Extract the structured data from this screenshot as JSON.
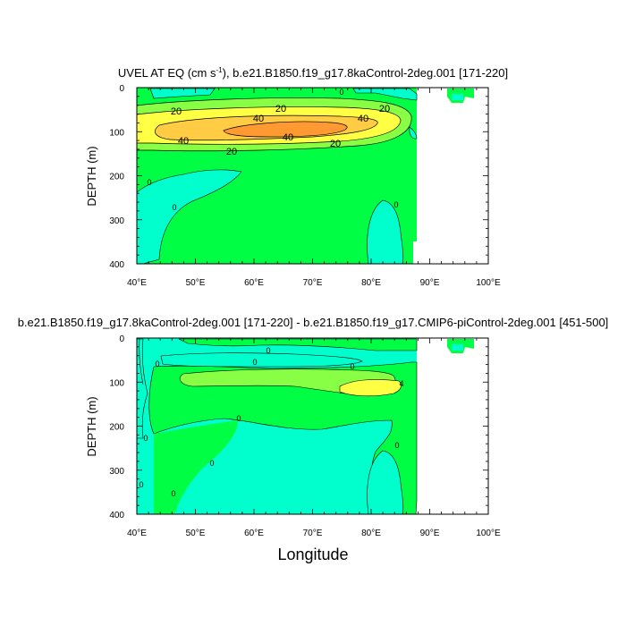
{
  "chart_data": [
    {
      "type": "contour",
      "title_main": "UVEL AT EQ (cm s",
      "title_sup": "-1",
      "title_rest": "), b.e21.B1850.f19_g17.8kaControl-2deg.001 [171-220]",
      "xlabel": "",
      "ylabel": "DEPTH (m)",
      "xlim": [
        40,
        100
      ],
      "ylim": [
        0,
        400
      ],
      "y_inverted": true,
      "x_ticks": [
        "40°E",
        "50°E",
        "60°E",
        "70°E",
        "80°E",
        "90°E",
        "100°E"
      ],
      "y_ticks": [
        "0",
        "100",
        "200",
        "300",
        "400"
      ],
      "contour_labels": [
        "20",
        "20",
        "20",
        "20",
        "40",
        "40",
        "40",
        "40",
        "20",
        "0",
        "0",
        "0",
        "0"
      ],
      "fill_colors": {
        "negative": "#00ffcc",
        "low": "#00ff44",
        "mid_low": "#88ff44",
        "mid": "#ffff44",
        "mid_high": "#ffcc44",
        "high": "#ff9a33",
        "core": "#ff8020"
      }
    },
    {
      "type": "contour",
      "title": "b.e21.B1850.f19_g17.8kaControl-2deg.001 [171-220] - b.e21.B1850.f19_g17.CMIP6-piControl-2deg.001 [451-500]",
      "xlabel": "Longitude",
      "ylabel": "DEPTH (m)",
      "xlim": [
        40,
        100
      ],
      "ylim": [
        0,
        400
      ],
      "y_inverted": true,
      "x_ticks": [
        "40°E",
        "50°E",
        "60°E",
        "70°E",
        "80°E",
        "90°E",
        "100°E"
      ],
      "y_ticks": [
        "0",
        "100",
        "200",
        "300",
        "400"
      ],
      "contour_labels": [
        "0",
        "0",
        "0",
        "0",
        "0",
        "0",
        "0",
        "0",
        "0",
        "0",
        "4"
      ],
      "fill_colors": {
        "negative": "#00ffcc",
        "low": "#00ff44",
        "mid_low": "#88ff44",
        "mid": "#ffff44"
      }
    }
  ]
}
